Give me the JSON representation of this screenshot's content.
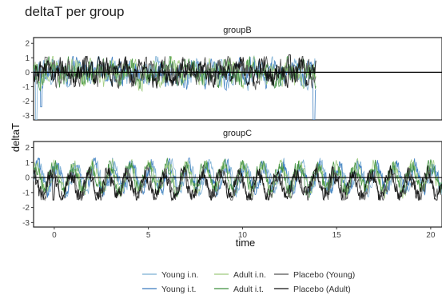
{
  "chart_data": {
    "type": "line",
    "title": "deltaT per group",
    "xlabel": "time",
    "ylabel": "deltaT",
    "xlim": [
      -1.1,
      20.6
    ],
    "x_ticks": [
      0,
      5,
      10,
      15,
      20
    ],
    "grid": false,
    "reference_line_y": 0,
    "legend_position": "bottom",
    "panels": [
      {
        "label": "groupB",
        "ylim": [
          -3.3,
          2.4
        ],
        "y_ticks": [
          2,
          1,
          0,
          -1,
          -2,
          -3
        ],
        "x_range_of_data": [
          -1.1,
          13.9
        ],
        "notes": "noisy series roughly within [-1, 1], large downward spikes near x=-1.0 (about -3.3) and x=13.8 (about -3.3)"
      },
      {
        "label": "groupC",
        "ylim": [
          -3.3,
          2.4
        ],
        "y_ticks": [
          2,
          1,
          0,
          -1,
          -2,
          -3
        ],
        "x_range_of_data": [
          -1.1,
          20.6
        ],
        "notes": "oscillating series roughly within [-1.4, 1.3] with period about 1"
      }
    ],
    "series": [
      {
        "name": "Young i.n.",
        "color": "#7bafd4"
      },
      {
        "name": "Young i.t.",
        "color": "#3a7bbf"
      },
      {
        "name": "Adult i.n.",
        "color": "#9fcb7e"
      },
      {
        "name": "Adult i.t.",
        "color": "#3e8f3e"
      },
      {
        "name": "Placebo (Young)",
        "color": "#555555"
      },
      {
        "name": "Placebo (Adult)",
        "color": "#111111"
      }
    ]
  }
}
